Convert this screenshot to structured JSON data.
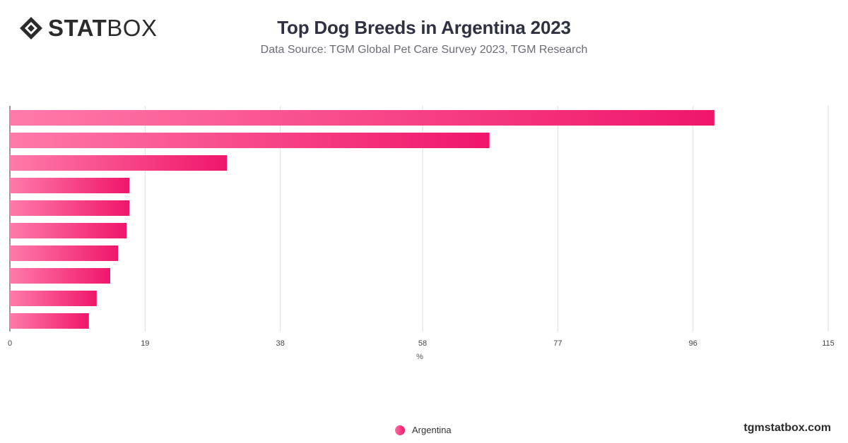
{
  "logo": {
    "bold": "STAT",
    "light": "BOX"
  },
  "title": "Top Dog Breeds in Argentina 2023",
  "subtitle": "Data Source: TGM Global Pet Care Survey 2023, TGM Research",
  "legend": {
    "label": "Argentina"
  },
  "site": "tgmstatbox.com",
  "colors": {
    "bar_start": "#ff7aaa",
    "bar_end": "#f0166a",
    "grid": "#dddddd",
    "axis": "#333333"
  },
  "chart_data": {
    "type": "bar",
    "orientation": "horizontal",
    "title": "Top Dog Breeds in Argentina 2023",
    "xlabel": "%",
    "ylabel": "",
    "xlim": [
      0,
      115
    ],
    "x_ticks": [
      0,
      19,
      38,
      58,
      77,
      96,
      115
    ],
    "categories": [
      "",
      "",
      "",
      "",
      "",
      "",
      "",
      "",
      "",
      ""
    ],
    "series": [
      {
        "name": "Argentina",
        "values": [
          99,
          67.4,
          30.5,
          16.8,
          16.8,
          16.4,
          15.2,
          14.1,
          12.2,
          11.1
        ]
      }
    ],
    "grid": true,
    "legend_position": "bottom-center"
  }
}
